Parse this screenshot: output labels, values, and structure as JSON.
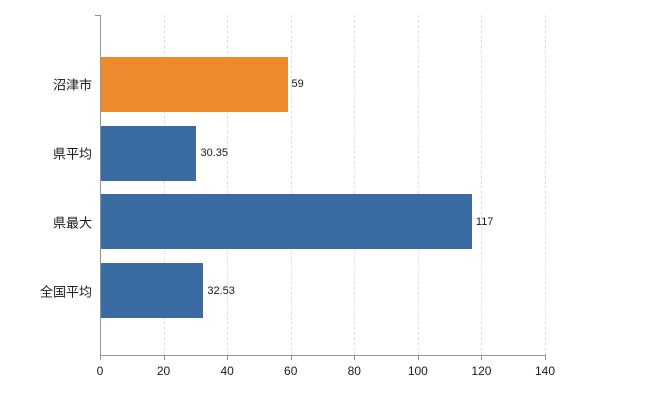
{
  "chart_data": {
    "type": "bar",
    "orientation": "horizontal",
    "title": "",
    "categories": [
      "沼津市",
      "県平均",
      "県最大",
      "全国平均"
    ],
    "values": [
      59,
      30.35,
      117,
      32.53
    ],
    "value_labels": [
      "59",
      "30.35",
      "117",
      "32.53"
    ],
    "bar_colors": [
      "#ee8a2e",
      "#3b6ba3",
      "#3b6ba3",
      "#3b6ba3"
    ],
    "xlim": [
      0,
      140
    ],
    "x_ticks": [
      0,
      20,
      40,
      60,
      80,
      100,
      120,
      140
    ],
    "grid": true,
    "legend": false,
    "colors": {
      "grid": "#d9e0e7",
      "axis": "#8f959c",
      "label": "#1a1a1a",
      "background": "#ffffff"
    }
  }
}
